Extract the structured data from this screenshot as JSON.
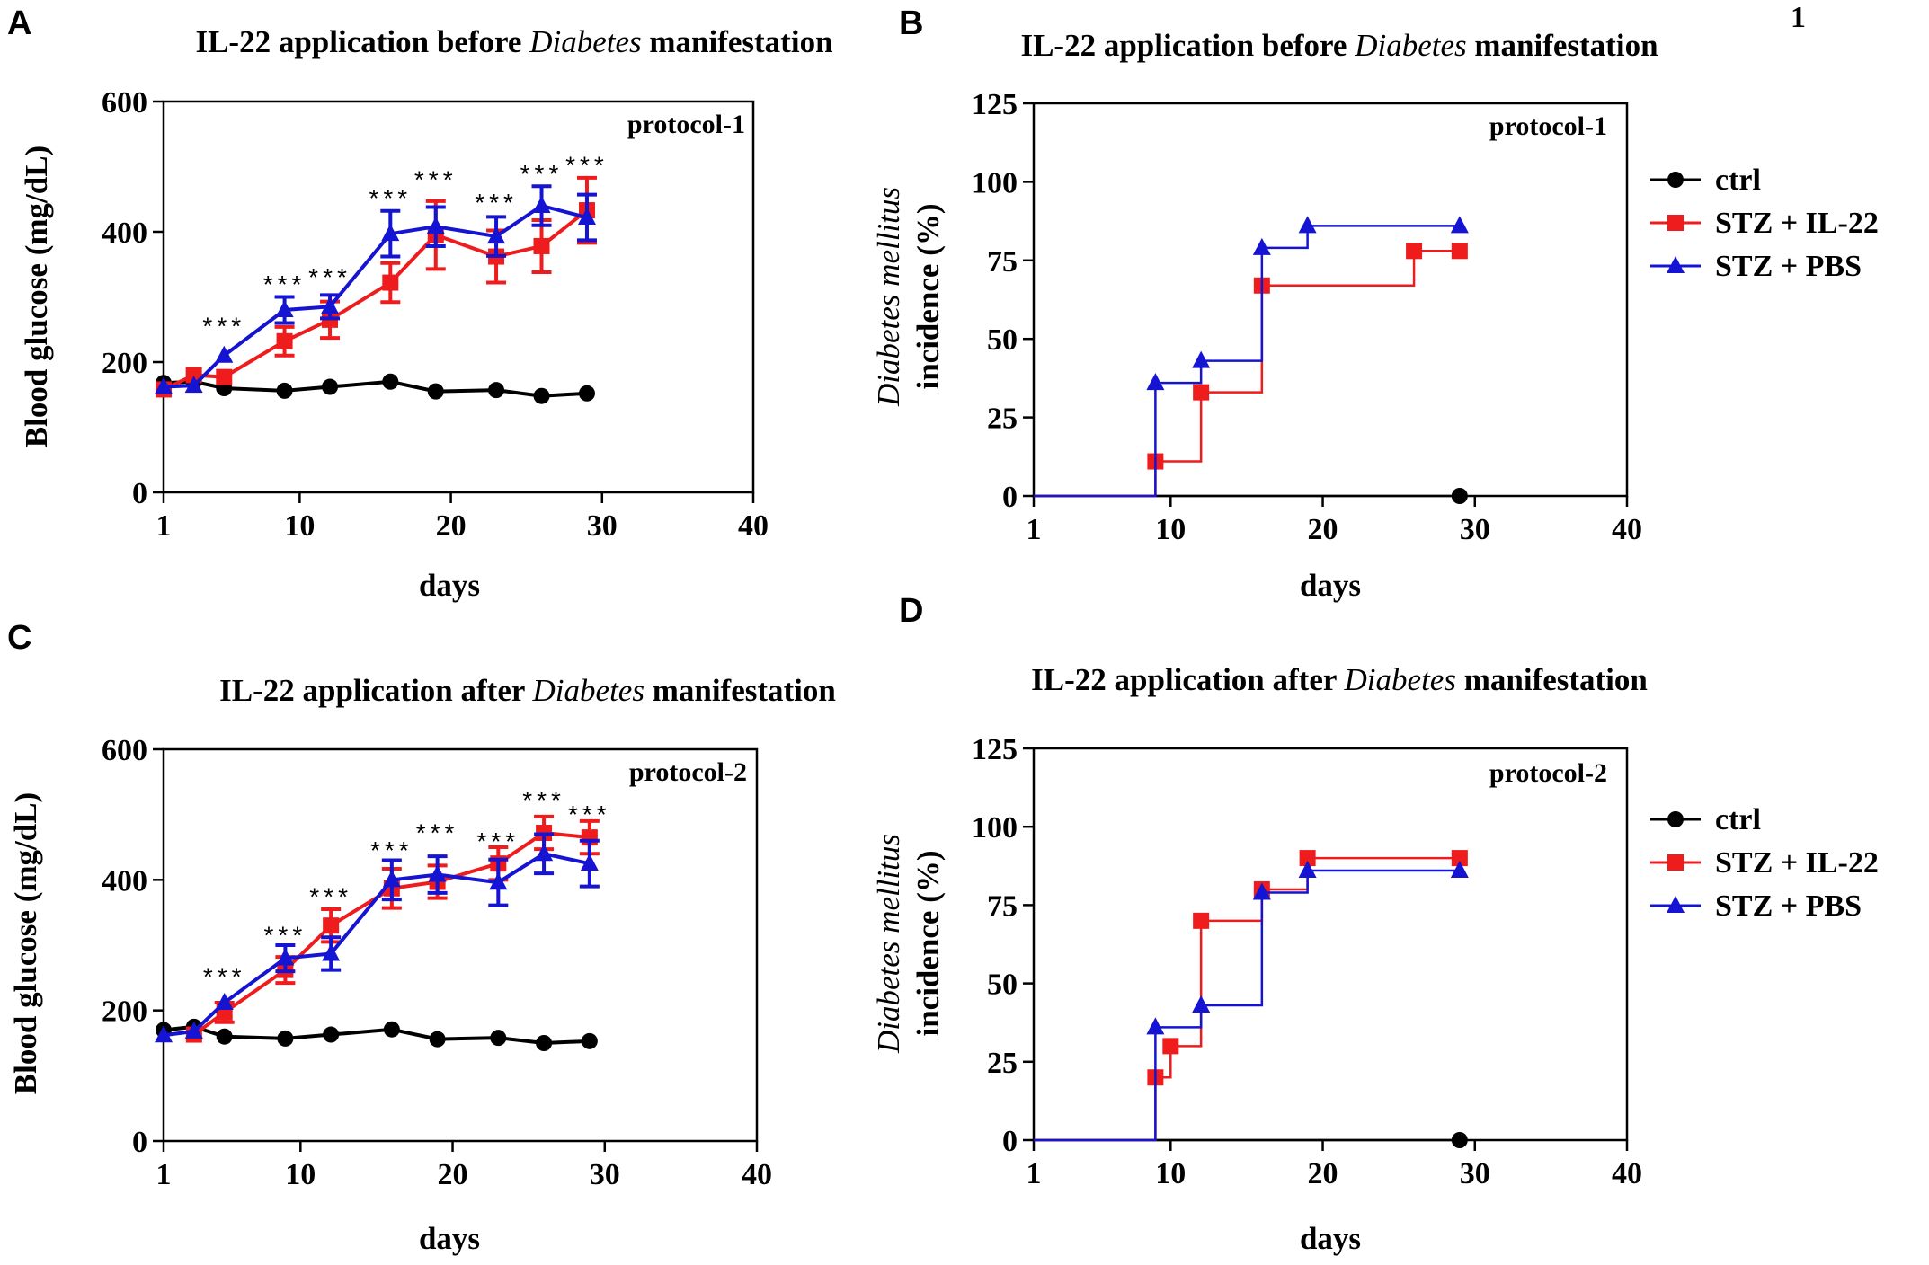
{
  "figure": {
    "corner_mark": "1",
    "colors": {
      "ctrl": "#000000",
      "il22": "#ee1c1c",
      "pbs": "#1414d2"
    }
  },
  "chart_data": [
    {
      "id": "A",
      "panel_label": "A",
      "type": "line",
      "title_pre": "IL-22 application before ",
      "title_italic": "Diabetes",
      "title_post": " manifestation",
      "ylabel": "Blood glucose (mg/dL)",
      "xlabel": "days",
      "xlim": [
        1,
        40
      ],
      "ylim": [
        0,
        600
      ],
      "xticks": [
        1,
        10,
        20,
        30,
        40
      ],
      "yticks": [
        0,
        200,
        400,
        600
      ],
      "protocol": "protocol-1",
      "significance_label": "***",
      "significance": [
        {
          "x": 5,
          "y": 253
        },
        {
          "x": 9,
          "y": 317
        },
        {
          "x": 12,
          "y": 328
        },
        {
          "x": 16,
          "y": 450
        },
        {
          "x": 19,
          "y": 478
        },
        {
          "x": 23,
          "y": 443
        },
        {
          "x": 26,
          "y": 487
        },
        {
          "x": 29,
          "y": 500
        }
      ],
      "series": [
        {
          "name": "ctrl",
          "marker": "circle",
          "color": "#000000",
          "x": [
            1,
            3,
            5,
            9,
            12,
            16,
            19,
            23,
            26,
            29
          ],
          "y": [
            168,
            170,
            160,
            156,
            162,
            170,
            155,
            157,
            148,
            152
          ],
          "err": [
            0,
            0,
            0,
            0,
            0,
            0,
            0,
            0,
            0,
            0
          ]
        },
        {
          "name": "STZ + IL-22",
          "marker": "square",
          "color": "#ee1c1c",
          "x": [
            1,
            3,
            5,
            9,
            12,
            16,
            19,
            23,
            26,
            29
          ],
          "y": [
            158,
            180,
            177,
            232,
            265,
            322,
            395,
            362,
            378,
            433
          ],
          "err": [
            0,
            0,
            0,
            22,
            28,
            30,
            52,
            40,
            40,
            50
          ]
        },
        {
          "name": "STZ + PBS",
          "marker": "triangle",
          "color": "#1414d2",
          "x": [
            1,
            3,
            5,
            9,
            12,
            16,
            19,
            23,
            26,
            29
          ],
          "y": [
            162,
            164,
            210,
            280,
            285,
            397,
            408,
            393,
            440,
            422
          ],
          "err": [
            0,
            0,
            0,
            20,
            18,
            35,
            30,
            30,
            30,
            35
          ]
        }
      ]
    },
    {
      "id": "B",
      "panel_label": "B",
      "type": "line",
      "step": true,
      "title_pre": "IL-22 application before ",
      "title_italic": "Diabetes",
      "title_post": " manifestation",
      "ylabel_italic": "Diabetes mellitus",
      "ylabel_rest": "incidence (%)",
      "xlabel": "days",
      "xlim": [
        1,
        40
      ],
      "ylim": [
        0,
        125
      ],
      "xticks": [
        1,
        10,
        20,
        30,
        40
      ],
      "yticks": [
        0,
        25,
        50,
        75,
        100,
        125
      ],
      "protocol": "protocol-1",
      "legend": [
        "ctrl",
        "STZ  + IL-22",
        "STZ  + PBS"
      ],
      "series": [
        {
          "name": "ctrl",
          "marker": "circle",
          "color": "#000000",
          "x": [
            1,
            29
          ],
          "y": [
            0,
            0
          ],
          "markers_at": [
            29
          ]
        },
        {
          "name": "STZ + IL-22",
          "marker": "square",
          "color": "#ee1c1c",
          "x": [
            1,
            9,
            12,
            16,
            26,
            29
          ],
          "y": [
            0,
            11,
            33,
            67,
            78,
            78
          ],
          "markers_at": [
            9,
            12,
            16,
            26,
            29
          ]
        },
        {
          "name": "STZ + PBS",
          "marker": "triangle",
          "color": "#1414d2",
          "x": [
            1,
            9,
            12,
            16,
            19,
            29
          ],
          "y": [
            0,
            36,
            43,
            79,
            86,
            86
          ],
          "markers_at": [
            9,
            12,
            16,
            19,
            29
          ]
        }
      ]
    },
    {
      "id": "C",
      "panel_label": "C",
      "type": "line",
      "title_pre": "IL-22 application after ",
      "title_italic": "Diabetes",
      "title_post": " manifestation",
      "ylabel": "Blood glucose (mg/dL)",
      "xlabel": "days",
      "xlim": [
        1,
        40
      ],
      "ylim": [
        0,
        600
      ],
      "xticks": [
        1,
        10,
        20,
        30,
        40
      ],
      "yticks": [
        0,
        200,
        400,
        600
      ],
      "protocol": "protocol-2",
      "significance_label": "***",
      "significance": [
        {
          "x": 5,
          "y": 250
        },
        {
          "x": 9,
          "y": 313
        },
        {
          "x": 12,
          "y": 372
        },
        {
          "x": 16,
          "y": 443
        },
        {
          "x": 19,
          "y": 470
        },
        {
          "x": 23,
          "y": 457
        },
        {
          "x": 26,
          "y": 520
        },
        {
          "x": 29,
          "y": 498
        }
      ],
      "series": [
        {
          "name": "ctrl",
          "marker": "circle",
          "color": "#000000",
          "x": [
            1,
            3,
            5,
            9,
            12,
            16,
            19,
            23,
            26,
            29
          ],
          "y": [
            170,
            175,
            160,
            157,
            163,
            171,
            156,
            158,
            150,
            153
          ],
          "err": [
            0,
            0,
            0,
            0,
            0,
            0,
            0,
            0,
            0,
            0
          ]
        },
        {
          "name": "STZ + IL-22",
          "marker": "square",
          "color": "#ee1c1c",
          "x": [
            3,
            5,
            9,
            12,
            16,
            19,
            23,
            26,
            29
          ],
          "y": [
            163,
            197,
            262,
            330,
            387,
            397,
            425,
            472,
            465
          ],
          "err": [
            0,
            15,
            20,
            25,
            30,
            25,
            25,
            25,
            25
          ]
        },
        {
          "name": "STZ + PBS",
          "marker": "triangle",
          "color": "#1414d2",
          "x": [
            1,
            3,
            5,
            9,
            12,
            16,
            19,
            23,
            26,
            29
          ],
          "y": [
            162,
            168,
            212,
            280,
            287,
            400,
            408,
            396,
            440,
            425
          ],
          "err": [
            0,
            0,
            0,
            20,
            25,
            30,
            28,
            35,
            30,
            35
          ]
        }
      ]
    },
    {
      "id": "D",
      "panel_label": "D",
      "type": "line",
      "step": true,
      "title_pre": "IL-22 application after ",
      "title_italic": "Diabetes",
      "title_post": " manifestation",
      "ylabel_italic": "Diabetes mellitus",
      "ylabel_rest": "incidence (%)",
      "xlabel": "days",
      "xlim": [
        1,
        40
      ],
      "ylim": [
        0,
        125
      ],
      "xticks": [
        1,
        10,
        20,
        30,
        40
      ],
      "yticks": [
        0,
        25,
        50,
        75,
        100,
        125
      ],
      "protocol": "protocol-2",
      "legend": [
        "ctrl",
        "STZ  + IL-22",
        "STZ  + PBS"
      ],
      "series": [
        {
          "name": "ctrl",
          "marker": "circle",
          "color": "#000000",
          "x": [
            1,
            29
          ],
          "y": [
            0,
            0
          ],
          "markers_at": [
            29
          ]
        },
        {
          "name": "STZ + IL-22",
          "marker": "square",
          "color": "#ee1c1c",
          "x": [
            1,
            9,
            10,
            12,
            16,
            19,
            29
          ],
          "y": [
            0,
            20,
            30,
            70,
            80,
            90,
            90
          ],
          "markers_at": [
            9,
            10,
            12,
            16,
            19,
            29
          ]
        },
        {
          "name": "STZ + PBS",
          "marker": "triangle",
          "color": "#1414d2",
          "x": [
            1,
            9,
            12,
            16,
            19,
            29
          ],
          "y": [
            0,
            36,
            43,
            79,
            86,
            86
          ],
          "markers_at": [
            9,
            12,
            16,
            19,
            29
          ]
        }
      ]
    }
  ]
}
